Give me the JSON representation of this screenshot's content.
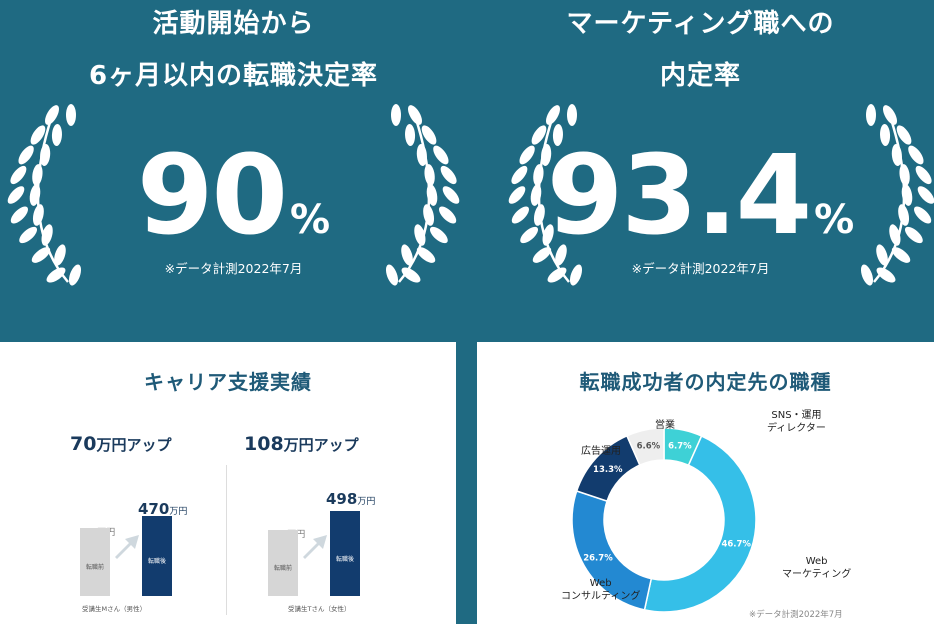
{
  "stats": [
    {
      "title_line1": "活動開始から",
      "title_line2": "6ヶ月以内の転職決定率",
      "value": "90",
      "unit": "%",
      "note": "※データ計測2022年7月"
    },
    {
      "title_line1": "マーケティング職への",
      "title_line2": "内定率",
      "value": "93.4",
      "unit": "%",
      "note": "※データ計測2022年7月"
    }
  ],
  "career": {
    "title": "キャリア支援実績",
    "cases": [
      {
        "headline_num": "70",
        "headline_unit": "万円アップ",
        "before_value": "400",
        "before_unit": "万円",
        "before_label": "転職前",
        "after_value": "470",
        "after_unit": "万円",
        "after_label": "転職後",
        "person": "受講生Mさん（男性）"
      },
      {
        "headline_num": "108",
        "headline_unit": "万円アップ",
        "before_value": "390",
        "before_unit": "万円",
        "before_label": "転職前",
        "after_value": "498",
        "after_unit": "万円",
        "after_label": "転職後",
        "person": "受講生Tさん（女性）"
      }
    ]
  },
  "jobs": {
    "title": "転職成功者の内定先の職種",
    "note": "※データ計測2022年7月",
    "slice_labels": [
      "6.7%",
      "46.7%",
      "26.7%",
      "13.3%",
      "6.6%"
    ],
    "category_labels": [
      "SNS・運用\nディレクター",
      "Web\nマーケティング",
      "Web\nコンサルティング",
      "広告運用",
      "営業"
    ]
  },
  "chart_data": [
    {
      "type": "bar",
      "categories": [
        "転職前",
        "転職後"
      ],
      "values": [
        400,
        470
      ],
      "ylabel": "万円"
    },
    {
      "type": "bar",
      "categories": [
        "転職前",
        "転職後"
      ],
      "values": [
        390,
        498
      ],
      "ylabel": "万円"
    },
    {
      "type": "pie",
      "title": "転職成功者の内定先の職種",
      "categories": [
        "SNS・運用ディレクター",
        "Webマーケティング",
        "Webコンサルティング",
        "広告運用",
        "営業"
      ],
      "values": [
        6.7,
        46.7,
        26.7,
        13.3,
        6.6
      ],
      "colors": [
        "#3ed1d6",
        "#35bfe8",
        "#2389d2",
        "#123c6e",
        "#eeeeee"
      ]
    }
  ]
}
